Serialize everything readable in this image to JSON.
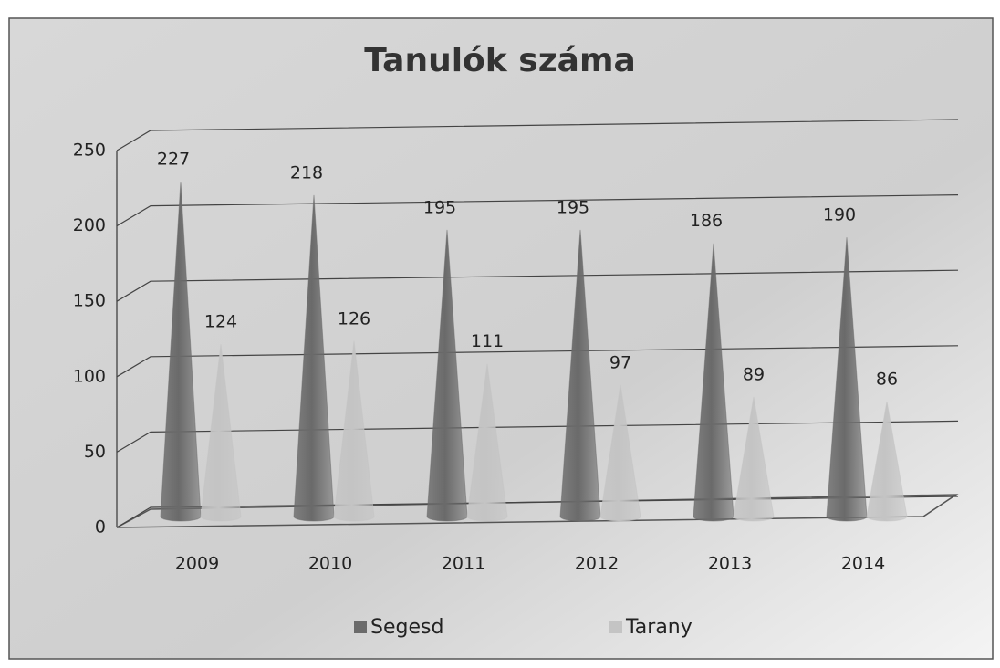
{
  "chart_data": {
    "type": "cone",
    "title": "Tanulók száma",
    "categories": [
      "2009",
      "2010",
      "2011",
      "2012",
      "2013",
      "2014"
    ],
    "series": [
      {
        "name": "Segesd",
        "color": "#6a6a6a",
        "values": [
          227,
          218,
          195,
          195,
          186,
          190
        ]
      },
      {
        "name": "Tarany",
        "color": "#c4c4c4",
        "values": [
          124,
          126,
          111,
          97,
          89,
          86
        ]
      }
    ],
    "ylim": [
      0,
      250
    ],
    "yticks": [
      0,
      50,
      100,
      150,
      200,
      250
    ],
    "grid": true,
    "legend": "bottom"
  }
}
